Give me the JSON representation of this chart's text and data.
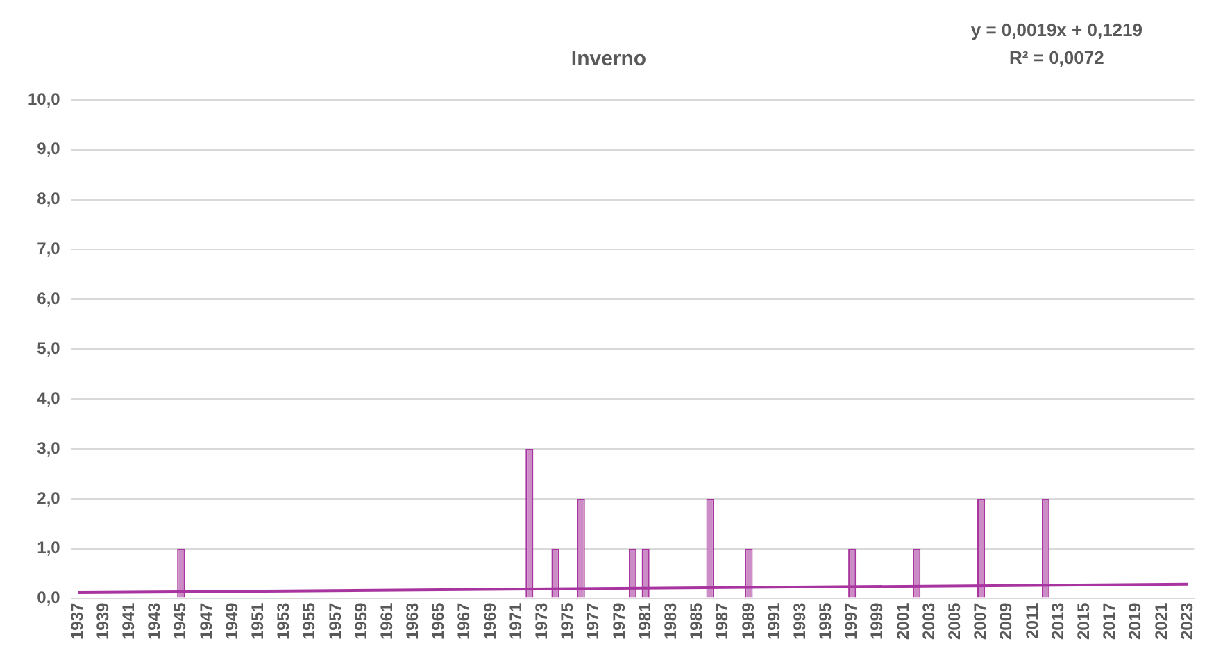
{
  "chart_data": {
    "type": "bar",
    "title": "Inverno",
    "categories": [
      "1937",
      null,
      "1939",
      null,
      "1941",
      null,
      "1943",
      null,
      "1945",
      null,
      "1947",
      null,
      "1949",
      null,
      "1951",
      null,
      "1953",
      null,
      "1955",
      null,
      "1957",
      null,
      "1959",
      null,
      "1961",
      null,
      "1963",
      null,
      "1965",
      null,
      "1967",
      null,
      "1969",
      null,
      "1971",
      null,
      "1973",
      null,
      "1975",
      null,
      "1977",
      null,
      "1979",
      null,
      "1981",
      null,
      "1983",
      null,
      "1985",
      null,
      "1987",
      null,
      "1989",
      null,
      "1991",
      null,
      "1993",
      null,
      "1995",
      null,
      "1997",
      null,
      "1999",
      null,
      "2001",
      null,
      "2003",
      null,
      "2005",
      null,
      "2007",
      null,
      "2009",
      null,
      "2011",
      null,
      "2013",
      null,
      "2015",
      null,
      "2017",
      null,
      "2019",
      null,
      "2021",
      null,
      "2023"
    ],
    "series": [
      {
        "color": "#cc8cc6",
        "values": [
          0,
          0,
          0,
          0,
          0,
          0,
          0,
          0,
          1,
          0,
          0,
          0,
          0,
          0,
          0,
          0,
          0,
          0,
          0,
          0,
          0,
          0,
          0,
          0,
          0,
          0,
          0,
          0,
          0,
          0,
          0,
          0,
          0,
          0,
          0,
          3,
          0,
          1,
          0,
          2,
          0,
          0,
          0,
          1,
          1,
          0,
          0,
          0,
          0,
          2,
          0,
          0,
          1,
          0,
          0,
          0,
          0,
          0,
          0,
          0,
          1,
          0,
          0,
          0,
          0,
          1,
          0,
          0,
          0,
          0,
          2,
          0,
          0,
          0,
          0,
          2,
          0,
          0,
          0,
          0,
          0,
          0,
          0,
          0,
          0,
          0,
          0
        ]
      },
      {
        "type": "line",
        "color": "#a8359f",
        "values": [
          0.12,
          null,
          null,
          null,
          null,
          null,
          null,
          null,
          null,
          null,
          null,
          null,
          null,
          null,
          null,
          null,
          null,
          null,
          null,
          null,
          null,
          null,
          null,
          null,
          null,
          null,
          null,
          null,
          null,
          null,
          null,
          null,
          null,
          null,
          null,
          null,
          null,
          null,
          null,
          null,
          null,
          null,
          null,
          null,
          null,
          null,
          null,
          null,
          null,
          null,
          null,
          null,
          null,
          null,
          null,
          null,
          null,
          null,
          null,
          null,
          null,
          null,
          null,
          null,
          null,
          null,
          null,
          null,
          null,
          null,
          null,
          null,
          null,
          null,
          null,
          null,
          null,
          null,
          null,
          null,
          null,
          null,
          null,
          null,
          null,
          null,
          0.29
        ]
      }
    ],
    "ylim": [
      0,
      10
    ],
    "yticks": [
      {
        "value": 0,
        "label": "0,0"
      },
      {
        "value": 1,
        "label": "1,0"
      },
      {
        "value": 2,
        "label": "2,0"
      },
      {
        "value": 3,
        "label": "3,0"
      },
      {
        "value": 4,
        "label": "4,0"
      },
      {
        "value": 5,
        "label": "5,0"
      },
      {
        "value": 6,
        "label": "6,0"
      },
      {
        "value": 7,
        "label": "7,0"
      },
      {
        "value": 8,
        "label": "8,0"
      },
      {
        "value": 9,
        "label": "9,0"
      },
      {
        "value": 10,
        "label": "10,0"
      }
    ],
    "grid": "y",
    "legend": false,
    "annotations": [
      "y = 0,0019x + 0,1219",
      "R² = 0,0072"
    ]
  }
}
